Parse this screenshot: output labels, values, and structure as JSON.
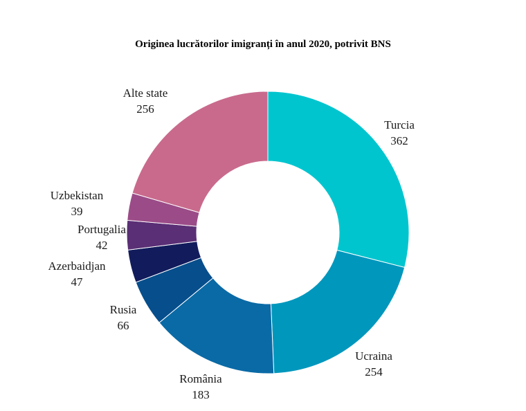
{
  "chart_data": {
    "type": "pie",
    "donut": true,
    "title": "Originea lucrătorilor imigranți în anul 2020, potrivit BNS",
    "categories": [
      "Turcia",
      "Ucraina",
      "România",
      "Rusia",
      "Azerbaidjan",
      "Portugalia",
      "Uzbekistan",
      "Alte state"
    ],
    "values": [
      362,
      254,
      183,
      66,
      47,
      42,
      39,
      256
    ],
    "labels": [
      "362",
      "254",
      "183",
      "66",
      "47",
      "42",
      "39",
      "256"
    ],
    "colors": [
      "#00c5cf",
      "#0097bd",
      "#0a6aa6",
      "#074e8c",
      "#121c5c",
      "#5a2f75",
      "#9b4c88",
      "#c96a8c"
    ],
    "legend": "none"
  }
}
